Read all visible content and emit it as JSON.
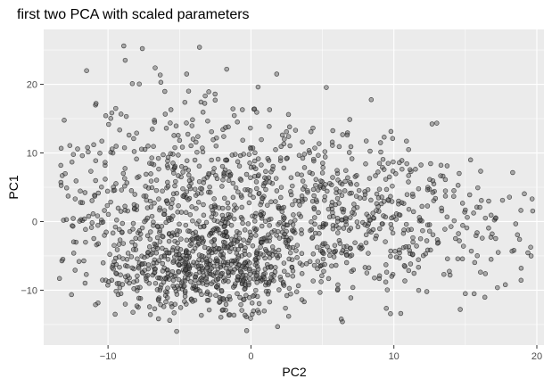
{
  "chart_data": {
    "type": "scatter",
    "title": "first two PCA with scaled parameters",
    "xlabel": "PC2",
    "ylabel": "PC1",
    "xlim": [
      -14.5,
      20.5
    ],
    "ylim": [
      -18,
      28
    ],
    "x_ticks": [
      -10,
      0,
      10,
      20
    ],
    "y_ticks": [
      -10,
      0,
      10,
      20
    ],
    "grid": true,
    "legend": "none",
    "colors": {
      "panel_background": "#ebebeb",
      "grid_major": "#ffffff",
      "point_fill": "#595959",
      "point_stroke": "#1a1a1a",
      "tick_text": "#4d4d4d"
    },
    "series": [
      {
        "points": [
          [
            -13.3,
            8.2
          ],
          [
            -13.2,
            6.7
          ],
          [
            -12.3,
            3.3
          ],
          [
            -11.9,
            0.3
          ],
          [
            -12.4,
            -4.6
          ],
          [
            -11.8,
            9.6
          ],
          [
            -11.5,
            22.0
          ],
          [
            -11.0,
            11.2
          ],
          [
            -10.8,
            -3.4
          ],
          [
            -10.2,
            8.2
          ],
          [
            -9.8,
            10.1
          ],
          [
            -9.4,
            -7.6
          ],
          [
            -9.1,
            -10.5
          ],
          [
            -9.5,
            -13.5
          ],
          [
            -8.8,
            23.5
          ],
          [
            -8.9,
            25.6
          ],
          [
            -8.6,
            -4.6
          ],
          [
            -8.3,
            20.1
          ],
          [
            -7.6,
            25.2
          ],
          [
            -7.2,
            11.0
          ],
          [
            -6.7,
            22.4
          ],
          [
            -6.3,
            20.3
          ],
          [
            -5.6,
            16.3
          ],
          [
            -5.2,
            -16.0
          ],
          [
            -4.5,
            21.5
          ],
          [
            -3.6,
            25.4
          ],
          [
            -3.2,
            18.3
          ],
          [
            -2.5,
            17.7
          ],
          [
            -1.7,
            22.2
          ],
          [
            -1.1,
            9.8
          ],
          [
            -0.6,
            16.3
          ],
          [
            -0.3,
            -15.9
          ],
          [
            0.5,
            19.6
          ],
          [
            1.3,
            16.3
          ],
          [
            1.8,
            21.5
          ],
          [
            2.7,
            13.8
          ],
          [
            3.6,
            11.6
          ],
          [
            4.2,
            13.1
          ],
          [
            5.2,
            5.4
          ],
          [
            5.7,
            11.1
          ],
          [
            6.4,
            -14.6
          ],
          [
            6.7,
            -3.6
          ],
          [
            7.4,
            5.4
          ],
          [
            8.3,
            6.3
          ],
          [
            9.2,
            7.9
          ],
          [
            10.4,
            -5.3
          ],
          [
            11.2,
            7.3
          ],
          [
            12.3,
            -10.2
          ],
          [
            13.5,
            -7.7
          ],
          [
            14.2,
            4.5
          ],
          [
            15.0,
            -10.5
          ],
          [
            16.4,
            0.5
          ],
          [
            17.3,
            -4.5
          ],
          [
            18.4,
            -4.2
          ],
          [
            19.6,
            -5.0
          ],
          [
            18.9,
            -6.8
          ],
          [
            17.8,
            -9.2
          ],
          [
            16.8,
            -5.5
          ],
          [
            15.8,
            2.1
          ],
          [
            15.3,
            3.9
          ]
        ],
        "cloud": [
          {
            "cx": -3.5,
            "cy": -7.0,
            "sx": 3.6,
            "sy": 3.3,
            "n": 520
          },
          {
            "cx": -1.0,
            "cy": 2.0,
            "sx": 6.2,
            "sy": 7.0,
            "n": 560
          },
          {
            "cx": 5.5,
            "cy": 0.5,
            "sx": 5.4,
            "sy": 5.5,
            "n": 300
          },
          {
            "cx": 12.5,
            "cy": -1.5,
            "sx": 3.6,
            "sy": 4.5,
            "n": 110
          },
          {
            "cx": -6.5,
            "cy": 6.0,
            "sx": 3.5,
            "sy": 7.5,
            "n": 140
          }
        ]
      }
    ]
  }
}
